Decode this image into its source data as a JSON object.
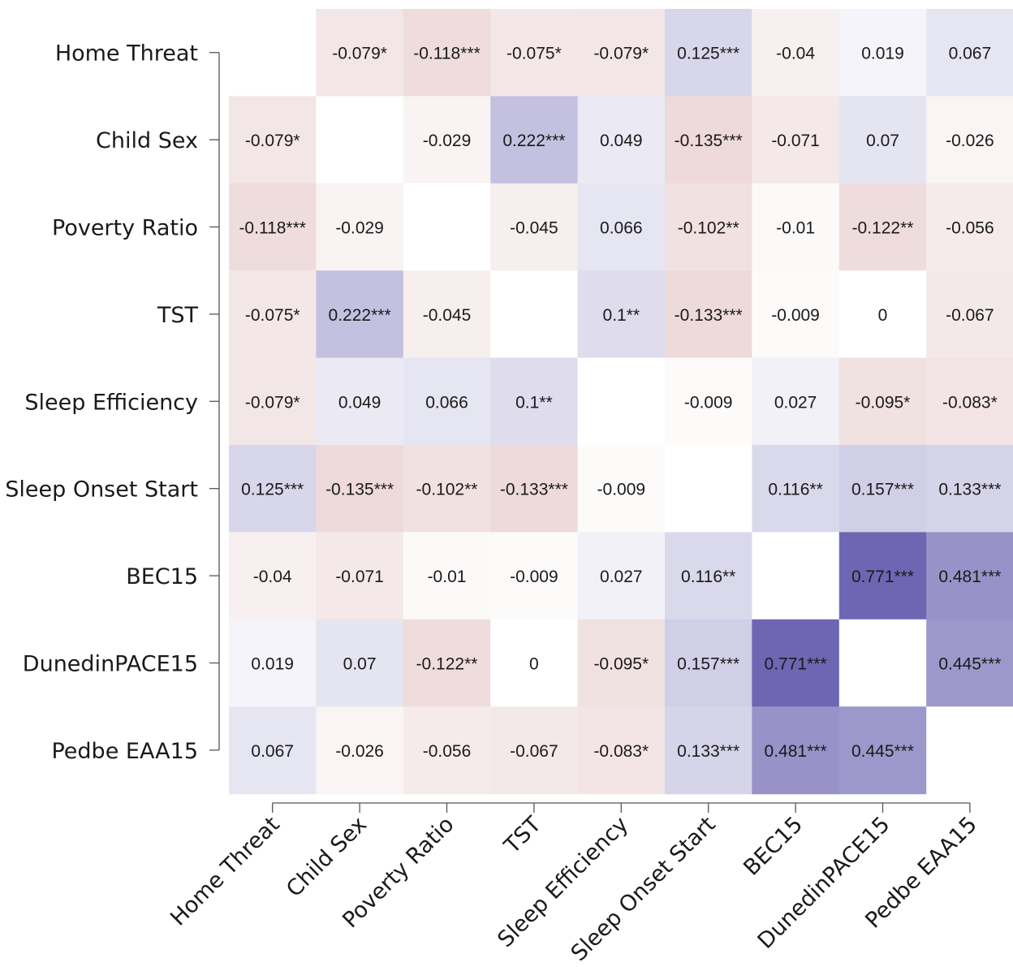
{
  "chart_data": {
    "type": "heatmap",
    "title": "",
    "xlabel": "",
    "ylabel": "",
    "variables": [
      "Home Threat",
      "Child Sex",
      "Poverty Ratio",
      "TST",
      "Sleep Efficiency",
      "Sleep Onset Start",
      "BEC15",
      "DunedinPACE15",
      "Pedbe EAA15"
    ],
    "x_tick_labels": [
      "Home Threat",
      "Child Sex",
      "Poverty Ratio",
      "TST",
      "Sleep Efficiency",
      "Sleep Onset Start",
      "BEC15",
      "DunedinPACE15",
      "Pedbe EAA15"
    ],
    "y_tick_labels": [
      "Home Threat",
      "Child Sex",
      "Poverty Ratio",
      "TST",
      "Sleep Efficiency",
      "Sleep Onset Start",
      "BEC15",
      "DunedinPACE15",
      "Pedbe EAA15"
    ],
    "values": [
      [
        null,
        -0.079,
        -0.118,
        -0.075,
        -0.079,
        0.125,
        -0.04,
        0.019,
        0.067
      ],
      [
        -0.079,
        null,
        -0.029,
        0.222,
        0.049,
        -0.135,
        -0.071,
        0.07,
        -0.026
      ],
      [
        -0.118,
        -0.029,
        null,
        -0.045,
        0.066,
        -0.102,
        -0.01,
        -0.122,
        -0.056
      ],
      [
        -0.075,
        0.222,
        -0.045,
        null,
        0.1,
        -0.133,
        -0.009,
        0,
        -0.067
      ],
      [
        -0.079,
        0.049,
        0.066,
        0.1,
        null,
        -0.009,
        0.027,
        -0.095,
        -0.083
      ],
      [
        0.125,
        -0.135,
        -0.102,
        -0.133,
        -0.009,
        null,
        0.116,
        0.157,
        0.133
      ],
      [
        -0.04,
        -0.071,
        -0.01,
        -0.009,
        0.027,
        0.116,
        null,
        0.771,
        0.481
      ],
      [
        0.019,
        0.07,
        -0.122,
        0,
        -0.095,
        0.157,
        0.771,
        null,
        0.445
      ],
      [
        0.067,
        -0.026,
        -0.056,
        -0.067,
        -0.083,
        0.133,
        0.481,
        0.445,
        null
      ]
    ],
    "labels": [
      [
        "",
        "-0.079*",
        "-0.118***",
        "-0.075*",
        "-0.079*",
        "0.125***",
        "-0.04",
        "0.019",
        "0.067"
      ],
      [
        "-0.079*",
        "",
        "-0.029",
        "0.222***",
        "0.049",
        "-0.135***",
        "-0.071",
        "0.07",
        "-0.026"
      ],
      [
        "-0.118***",
        "-0.029",
        "",
        "-0.045",
        "0.066",
        "-0.102**",
        "-0.01",
        "-0.122**",
        "-0.056"
      ],
      [
        "-0.075*",
        "0.222***",
        "-0.045",
        "",
        "0.1**",
        "-0.133***",
        "-0.009",
        "0",
        "-0.067"
      ],
      [
        "-0.079*",
        "0.049",
        "0.066",
        "0.1**",
        "",
        "-0.009",
        "0.027",
        "-0.095*",
        "-0.083*"
      ],
      [
        "0.125***",
        "-0.135***",
        "-0.102**",
        "-0.133***",
        "-0.009",
        "",
        "0.116**",
        "0.157***",
        "0.133***"
      ],
      [
        "-0.04",
        "-0.071",
        "-0.01",
        "-0.009",
        "0.027",
        "0.116**",
        "",
        "0.771***",
        "0.481***"
      ],
      [
        "0.019",
        "0.07",
        "-0.122**",
        "0",
        "-0.095*",
        "0.157***",
        "0.771***",
        "",
        "0.445***"
      ],
      [
        "0.067",
        "-0.026",
        "-0.056",
        "-0.067",
        "-0.083*",
        "0.133***",
        "0.481***",
        "0.445***",
        ""
      ]
    ],
    "color_scale": {
      "negative": "#c07a7a",
      "neutral": "#ffffff",
      "positive": "#6a62b0",
      "range": [
        -0.8,
        0.8
      ]
    },
    "grid": false
  }
}
